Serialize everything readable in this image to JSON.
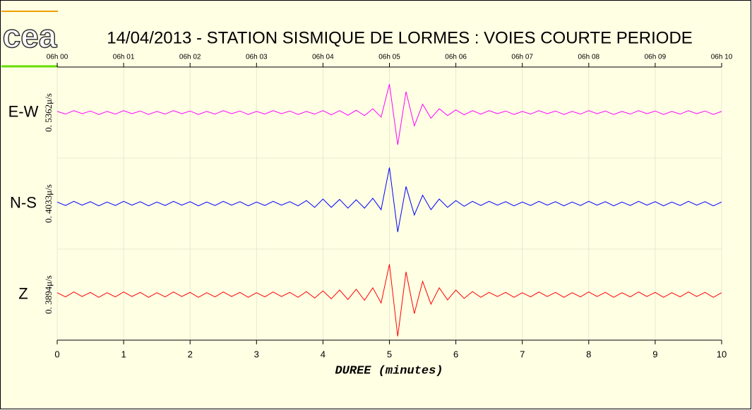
{
  "logo": "cea",
  "chart_data": {
    "type": "line",
    "title": "14/04/2013  -  STATION SISMIQUE DE LORMES : VOIES COURTE PERIODE",
    "x_label": "DUREE (minutes)",
    "xlim": [
      0,
      10
    ],
    "xticks": [
      0,
      1,
      2,
      3,
      4,
      5,
      6,
      7,
      8,
      9,
      10
    ],
    "top_ticks": [
      {
        "value": 0,
        "label": "06h 00"
      },
      {
        "value": 1,
        "label": "06h 01"
      },
      {
        "value": 2,
        "label": "06h 02"
      },
      {
        "value": 3,
        "label": "06h 03"
      },
      {
        "value": 4,
        "label": "06h 04"
      },
      {
        "value": 5,
        "label": "06h 05"
      },
      {
        "value": 6,
        "label": "06h 06"
      },
      {
        "value": 7,
        "label": "06h 07"
      },
      {
        "value": 8,
        "label": "06h 08"
      },
      {
        "value": 9,
        "label": "06h 09"
      },
      {
        "value": 10,
        "label": "06h 10"
      }
    ],
    "ylim": [
      -1.2,
      1.2
    ],
    "grid": true,
    "x": [
      0,
      0.125,
      0.25,
      0.375,
      0.5,
      0.625,
      0.75,
      0.875,
      1,
      1.125,
      1.25,
      1.375,
      1.5,
      1.625,
      1.75,
      1.875,
      2,
      2.125,
      2.25,
      2.375,
      2.5,
      2.625,
      2.75,
      2.875,
      3,
      3.125,
      3.25,
      3.375,
      3.5,
      3.625,
      3.75,
      3.875,
      4,
      4.125,
      4.25,
      4.375,
      4.5,
      4.625,
      4.75,
      4.875,
      5,
      5.125,
      5.25,
      5.375,
      5.5,
      5.625,
      5.75,
      5.875,
      6,
      6.125,
      6.25,
      6.375,
      6.5,
      6.625,
      6.75,
      6.875,
      7,
      7.125,
      7.25,
      7.375,
      7.5,
      7.625,
      7.75,
      7.875,
      8,
      8.125,
      8.25,
      8.375,
      8.5,
      8.625,
      8.75,
      8.875,
      9,
      9.125,
      9.25,
      9.375,
      9.5,
      9.625,
      9.75,
      9.875,
      10
    ],
    "series": [
      {
        "name": "E-W",
        "scale_label": "0. 5362μ/s",
        "color": "#ff00ff",
        "values": [
          0.03,
          -0.04,
          0.05,
          -0.03,
          0.04,
          -0.05,
          0.03,
          -0.04,
          0.05,
          -0.03,
          0.04,
          -0.05,
          0.03,
          -0.04,
          0.05,
          -0.03,
          0.04,
          -0.05,
          0.03,
          -0.04,
          0.05,
          -0.03,
          0.04,
          -0.05,
          0.03,
          -0.04,
          0.05,
          -0.03,
          0.04,
          -0.05,
          0.03,
          -0.04,
          0.05,
          -0.06,
          0.05,
          -0.07,
          0.06,
          -0.08,
          0.1,
          -0.12,
          0.75,
          -0.85,
          0.55,
          -0.35,
          0.22,
          -0.15,
          0.1,
          -0.08,
          0.07,
          -0.06,
          0.05,
          -0.04,
          0.05,
          -0.03,
          0.04,
          -0.05,
          0.03,
          -0.04,
          0.05,
          -0.03,
          0.04,
          -0.05,
          0.03,
          -0.04,
          0.05,
          -0.03,
          0.04,
          -0.05,
          0.03,
          -0.04,
          0.05,
          -0.03,
          0.04,
          -0.05,
          0.03,
          -0.04,
          0.05,
          -0.03,
          0.04,
          -0.05,
          0.03
        ]
      },
      {
        "name": "N-S",
        "scale_label": "0. 4033μ/s",
        "color": "#0000ff",
        "values": [
          0.04,
          -0.05,
          0.06,
          -0.04,
          0.05,
          -0.06,
          0.04,
          -0.05,
          0.06,
          -0.04,
          0.05,
          -0.06,
          0.04,
          -0.05,
          0.06,
          -0.04,
          0.05,
          -0.06,
          0.04,
          -0.05,
          0.06,
          -0.04,
          0.05,
          -0.06,
          0.04,
          -0.05,
          0.06,
          -0.04,
          0.05,
          -0.06,
          0.08,
          -0.1,
          0.12,
          -0.1,
          0.11,
          -0.12,
          0.1,
          -0.12,
          0.14,
          -0.16,
          0.95,
          -0.75,
          0.45,
          -0.3,
          0.22,
          -0.16,
          0.12,
          -0.1,
          0.08,
          -0.07,
          0.06,
          -0.05,
          0.06,
          -0.04,
          0.05,
          -0.06,
          0.04,
          -0.05,
          0.06,
          -0.04,
          0.05,
          -0.06,
          0.04,
          -0.05,
          0.06,
          -0.04,
          0.05,
          -0.06,
          0.04,
          -0.05,
          0.06,
          -0.04,
          0.05,
          -0.06,
          0.04,
          -0.05,
          0.06,
          -0.04,
          0.05,
          -0.06,
          0.04
        ]
      },
      {
        "name": "Z",
        "scale_label": "0. 3894μ/s",
        "color": "#ff0000",
        "values": [
          0.05,
          -0.06,
          0.07,
          -0.05,
          0.06,
          -0.07,
          0.05,
          -0.06,
          0.07,
          -0.05,
          0.06,
          -0.07,
          0.05,
          -0.06,
          0.07,
          -0.05,
          0.06,
          -0.07,
          0.05,
          -0.06,
          0.07,
          -0.05,
          0.06,
          -0.07,
          0.05,
          -0.06,
          0.07,
          -0.05,
          0.06,
          -0.07,
          0.08,
          -0.09,
          0.1,
          -0.11,
          0.12,
          -0.13,
          0.14,
          -0.15,
          0.18,
          -0.22,
          0.8,
          -1.1,
          0.6,
          -0.5,
          0.35,
          -0.25,
          0.18,
          -0.14,
          0.12,
          -0.1,
          0.08,
          -0.07,
          0.06,
          -0.05,
          0.06,
          -0.07,
          0.05,
          -0.06,
          0.07,
          -0.05,
          0.06,
          -0.07,
          0.05,
          -0.06,
          0.07,
          -0.05,
          0.06,
          -0.07,
          0.05,
          -0.06,
          0.07,
          -0.05,
          0.06,
          -0.07,
          0.05,
          -0.06,
          0.07,
          -0.05,
          0.06,
          -0.07,
          0.05
        ]
      }
    ]
  }
}
